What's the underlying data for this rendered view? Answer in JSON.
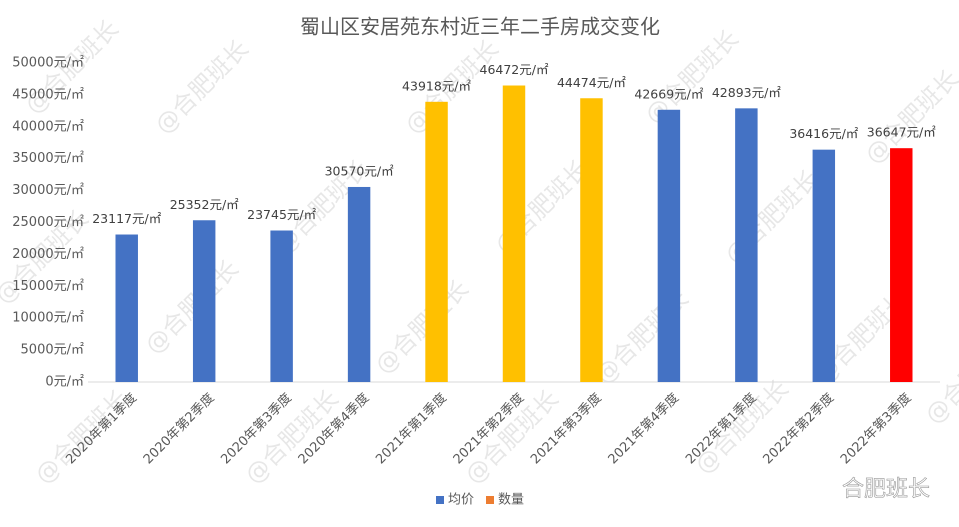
{
  "chart_data": {
    "type": "bar",
    "title": "蜀山区安居苑东村近三年二手房成交变化",
    "categories": [
      "2020年第1季度",
      "2020年第2季度",
      "2020年第3季度",
      "2020年第4季度",
      "2021年第1季度",
      "2021年第2季度",
      "2021年第3季度",
      "2021年第4季度",
      "2022年第1季度",
      "2022年第2季度",
      "2022年第3季度"
    ],
    "series": [
      {
        "name": "均价",
        "color": "#4472c4",
        "colors": [
          "#4472c4",
          "#4472c4",
          "#4472c4",
          "#4472c4",
          "#ffc000",
          "#ffc000",
          "#ffc000",
          "#4472c4",
          "#4472c4",
          "#4472c4",
          "#ff0000"
        ],
        "values": [
          23117,
          25352,
          23745,
          30570,
          43918,
          46472,
          44474,
          42669,
          42893,
          36416,
          36647
        ],
        "value_labels": [
          "23117元/㎡",
          "25352元/㎡",
          "23745元/㎡",
          "30570元/㎡",
          "43918元/㎡",
          "46472元/㎡",
          "44474元/㎡",
          "42669元/㎡",
          "42893元/㎡",
          "36416元/㎡",
          "36647元/㎡"
        ]
      },
      {
        "name": "数量",
        "color": "#ed7d31",
        "values": [
          null,
          null,
          null,
          null,
          null,
          null,
          null,
          null,
          null,
          null,
          null
        ]
      }
    ],
    "ylim": [
      0,
      50000
    ],
    "yticks": [
      {
        "value": 0,
        "label": "0元/㎡"
      },
      {
        "value": 5000,
        "label": "5000元/㎡"
      },
      {
        "value": 10000,
        "label": "10000元/㎡"
      },
      {
        "value": 15000,
        "label": "15000元/㎡"
      },
      {
        "value": 20000,
        "label": "20000元/㎡"
      },
      {
        "value": 25000,
        "label": "25000元/㎡"
      },
      {
        "value": 30000,
        "label": "30000元/㎡"
      },
      {
        "value": 35000,
        "label": "35000元/㎡"
      },
      {
        "value": 40000,
        "label": "40000元/㎡"
      },
      {
        "value": 45000,
        "label": "45000元/㎡"
      },
      {
        "value": 50000,
        "label": "50000元/㎡"
      }
    ],
    "grid": false,
    "legend": "bottom",
    "watermark": "@合肥班长",
    "logo": "合肥班长"
  }
}
